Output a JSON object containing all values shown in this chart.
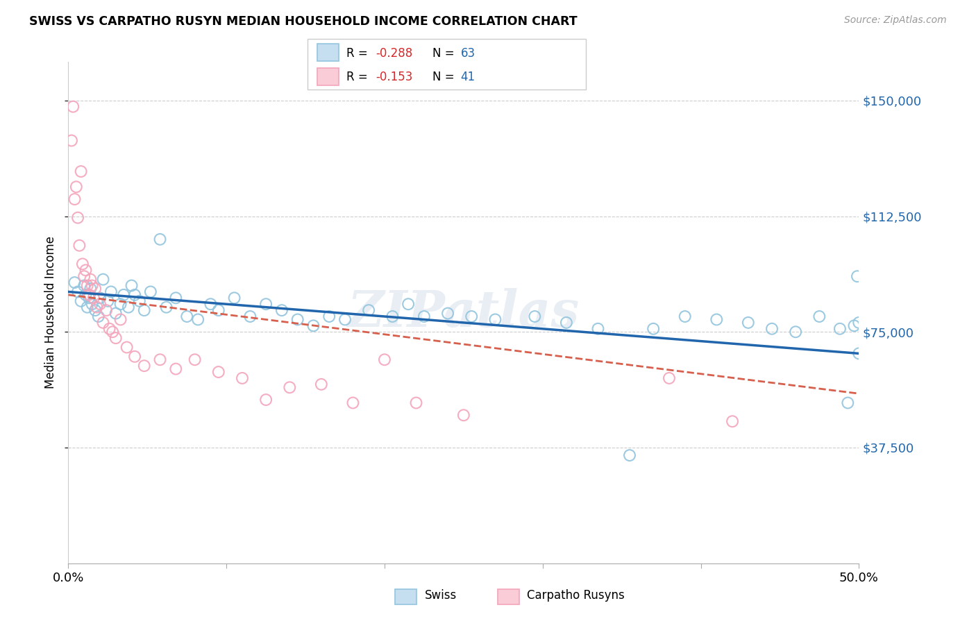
{
  "title": "SWISS VS CARPATHO RUSYN MEDIAN HOUSEHOLD INCOME CORRELATION CHART",
  "source": "Source: ZipAtlas.com",
  "ylabel": "Median Household Income",
  "xlim": [
    0.0,
    0.5
  ],
  "ylim": [
    0,
    162500
  ],
  "yticks": [
    37500,
    75000,
    112500,
    150000
  ],
  "ytick_labels": [
    "$37,500",
    "$75,000",
    "$112,500",
    "$150,000"
  ],
  "xticks": [
    0.0,
    0.1,
    0.2,
    0.3,
    0.4,
    0.5
  ],
  "xtick_labels": [
    "0.0%",
    "",
    "",
    "",
    "",
    "50.0%"
  ],
  "swiss_color": "#92c5de",
  "rusyn_color": "#f4a5bb",
  "swiss_line_color": "#2166ac",
  "rusyn_line_color": "#d6604d",
  "watermark": "ZIPatlas",
  "background_color": "#ffffff",
  "swiss_x": [
    0.004,
    0.006,
    0.008,
    0.01,
    0.011,
    0.012,
    0.013,
    0.014,
    0.015,
    0.017,
    0.019,
    0.02,
    0.022,
    0.025,
    0.027,
    0.03,
    0.033,
    0.035,
    0.038,
    0.04,
    0.042,
    0.045,
    0.048,
    0.052,
    0.058,
    0.062,
    0.068,
    0.075,
    0.082,
    0.09,
    0.095,
    0.105,
    0.115,
    0.125,
    0.135,
    0.145,
    0.155,
    0.165,
    0.175,
    0.19,
    0.205,
    0.215,
    0.225,
    0.24,
    0.255,
    0.27,
    0.295,
    0.315,
    0.335,
    0.355,
    0.37,
    0.39,
    0.41,
    0.43,
    0.445,
    0.46,
    0.475,
    0.488,
    0.493,
    0.497,
    0.499,
    0.5,
    0.5
  ],
  "swiss_y": [
    91000,
    88000,
    85000,
    90000,
    87000,
    83000,
    86000,
    89000,
    84000,
    82000,
    80000,
    86000,
    92000,
    85000,
    88000,
    81000,
    84000,
    87000,
    83000,
    90000,
    87000,
    85000,
    82000,
    88000,
    105000,
    83000,
    86000,
    80000,
    79000,
    84000,
    82000,
    86000,
    80000,
    84000,
    82000,
    79000,
    77000,
    80000,
    79000,
    82000,
    80000,
    84000,
    80000,
    81000,
    80000,
    79000,
    80000,
    78000,
    76000,
    35000,
    76000,
    80000,
    79000,
    78000,
    76000,
    75000,
    80000,
    76000,
    52000,
    77000,
    93000,
    78000,
    68000
  ],
  "rusyn_x": [
    0.002,
    0.003,
    0.004,
    0.005,
    0.006,
    0.007,
    0.008,
    0.009,
    0.01,
    0.011,
    0.012,
    0.013,
    0.014,
    0.015,
    0.016,
    0.017,
    0.018,
    0.02,
    0.022,
    0.024,
    0.026,
    0.028,
    0.03,
    0.033,
    0.037,
    0.042,
    0.048,
    0.058,
    0.068,
    0.08,
    0.095,
    0.11,
    0.125,
    0.14,
    0.16,
    0.18,
    0.2,
    0.22,
    0.25,
    0.38,
    0.42
  ],
  "rusyn_y": [
    137000,
    148000,
    118000,
    122000,
    112000,
    103000,
    127000,
    97000,
    93000,
    95000,
    90000,
    87000,
    92000,
    90000,
    86000,
    89000,
    83000,
    84000,
    78000,
    82000,
    76000,
    75000,
    73000,
    79000,
    70000,
    67000,
    64000,
    66000,
    63000,
    66000,
    62000,
    60000,
    53000,
    57000,
    58000,
    52000,
    66000,
    52000,
    48000,
    60000,
    46000
  ]
}
